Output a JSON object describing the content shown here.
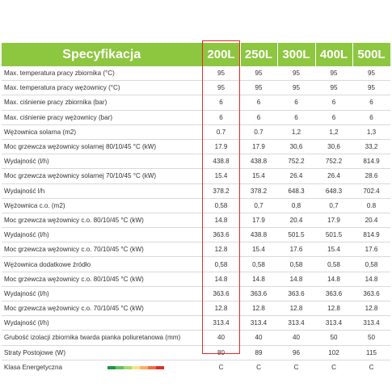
{
  "table": {
    "title": "Specyfikacja",
    "columns": [
      "200L",
      "250L",
      "300L",
      "400L",
      "500L"
    ],
    "rows": [
      {
        "label": "Max. temperatura pracy zbiornika (°C)",
        "values": [
          "95",
          "95",
          "95",
          "95",
          "95"
        ]
      },
      {
        "label": "Max. temperatura pracy wężownicy (°C)",
        "values": [
          "95",
          "95",
          "95",
          "95",
          "95"
        ]
      },
      {
        "label": "Max. ciśnienie pracy zbiornika (bar)",
        "values": [
          "6",
          "6",
          "6",
          "6",
          "6"
        ]
      },
      {
        "label": "Max. ciśnienie pracy wężownicy (bar)",
        "values": [
          "6",
          "6",
          "6",
          "6",
          "6"
        ]
      },
      {
        "label": "Wężownica solarna (m2)",
        "values": [
          "0.7",
          "0.7",
          "1,2",
          "1,2",
          "1,3"
        ]
      },
      {
        "label": "Moc grzewcza wężownicy solarnej 80/10/45 °C (kW)",
        "values": [
          "17.9",
          "17.9",
          "30,6",
          "30,6",
          "33,2"
        ]
      },
      {
        "label": "Wydajność (l/h)",
        "values": [
          "438.8",
          "438.8",
          "752.2",
          "752.2",
          "814.9"
        ]
      },
      {
        "label": "Moc grzewcza wężownicy solarnej 70/10/45 °C (kW)",
        "values": [
          "15.4",
          "15.4",
          "26.4",
          "26.4",
          "28.6"
        ]
      },
      {
        "label": "Wydajność l/h",
        "values": [
          "378.2",
          "378.2",
          "648.3",
          "648.3",
          "702.4"
        ]
      },
      {
        "label": "Wężownica c.o. (m2)",
        "values": [
          "0,58",
          "0,7",
          "0,8",
          "0,7",
          "0.8"
        ]
      },
      {
        "label": "Moc grzewcza wężownicy c.o. 80/10/45 °C (kW)",
        "values": [
          "14.8",
          "17.9",
          "20.4",
          "17.9",
          "20.4"
        ]
      },
      {
        "label": "Wydajność (l/h)",
        "values": [
          "363.6",
          "438.8",
          "501.5",
          "501.5",
          "814.9"
        ]
      },
      {
        "label": "Moc grzewcza wężownicy c.o. 70/10/45 °C (kW)",
        "values": [
          "12.8",
          "15.4",
          "17.6",
          "15.4",
          "17.6"
        ]
      },
      {
        "label": "Wężownica dodatkowe źródło",
        "values": [
          "0,58",
          "0,58",
          "0,58",
          "0,58",
          "0,58"
        ]
      },
      {
        "label": "Moc grzewcza wężownicy c.o. 80/10/45 °C (kW)",
        "values": [
          "14.8",
          "14.8",
          "14.8",
          "14.8",
          "14.8"
        ]
      },
      {
        "label": "Wydajność (l/h)",
        "values": [
          "363.6",
          "363.6",
          "363.6",
          "363.6",
          "363.6"
        ]
      },
      {
        "label": "Moc grzewcza wężownicy c.o. 70/10/45 °C (kW)",
        "values": [
          "12.8",
          "12.8",
          "12.8",
          "12.8",
          "12.8"
        ]
      },
      {
        "label": "Wydajność (l/h)",
        "values": [
          "313.4",
          "313.4",
          "313.4",
          "313.4",
          "313.4"
        ]
      },
      {
        "label": "Grubość izolacji zbiornika twarda pianka poliuretanowa (mm)",
        "values": [
          "40",
          "40",
          "40",
          "50",
          "50"
        ]
      },
      {
        "label": "Straty Postojowe (W)",
        "values": [
          "80",
          "89",
          "96",
          "102",
          "115"
        ]
      },
      {
        "label": "Klasa Energetyczna",
        "values": [
          "C",
          "C",
          "C",
          "C",
          "C"
        ]
      }
    ]
  },
  "energy_scale_colors": [
    "#1a9641",
    "#66bd63",
    "#a6d96a",
    "#fee08b",
    "#fdae61",
    "#f46d43",
    "#d73027"
  ],
  "highlight_color": "#e32a2a",
  "header_color": "#8dc63f"
}
